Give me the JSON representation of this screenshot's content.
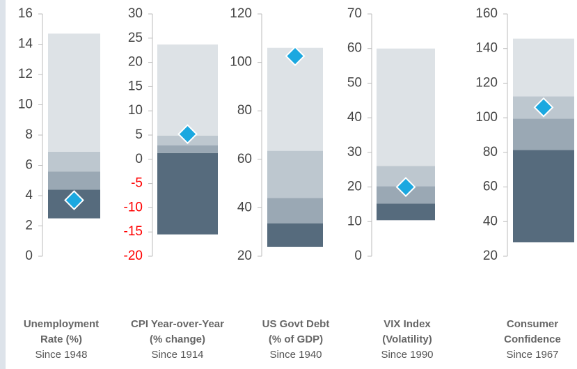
{
  "chart_data": [
    {
      "type": "range",
      "title": "Unemployment Rate (%)",
      "subtitle": "Since 1948",
      "ylim": [
        0,
        16
      ],
      "yticks": [
        0,
        2,
        4,
        6,
        8,
        10,
        12,
        14,
        16
      ],
      "values": {
        "min": 2.5,
        "q1": 4.4,
        "median": 5.6,
        "q3": 6.9,
        "max": 14.7,
        "current": 3.7
      }
    },
    {
      "type": "range",
      "title": "CPI Year-over-Year (% change)",
      "subtitle": "Since 1914",
      "ylim": [
        -20,
        30
      ],
      "yticks": [
        -20,
        -15,
        -10,
        -5,
        0,
        5,
        10,
        15,
        20,
        25,
        30
      ],
      "negative_color": "#ff0000",
      "values": {
        "min": -15.5,
        "q1": 1.3,
        "median": 2.9,
        "q3": 4.9,
        "max": 23.7,
        "current": 5.2
      }
    },
    {
      "type": "range",
      "title": "US Govt Debt (% of GDP)",
      "subtitle": "Since 1940",
      "ylim": [
        20,
        120
      ],
      "yticks": [
        20,
        40,
        60,
        80,
        100,
        120
      ],
      "values": {
        "min": 23.8,
        "q1": 33.6,
        "median": 44,
        "q3": 63.5,
        "max": 106,
        "current": 102.6
      }
    },
    {
      "type": "range",
      "title": "VIX Index (Volatility)",
      "subtitle": "Since 1990",
      "ylim": [
        0,
        70
      ],
      "yticks": [
        0,
        10,
        20,
        30,
        40,
        50,
        60,
        70
      ],
      "values": {
        "min": 10.4,
        "q1": 15.2,
        "median": 20.2,
        "q3": 26.1,
        "max": 60,
        "current": 20
      }
    },
    {
      "type": "range",
      "title": "Consumer Confidence",
      "subtitle": "Since 1967",
      "ylim": [
        20,
        160
      ],
      "yticks": [
        20,
        40,
        60,
        80,
        100,
        120,
        140,
        160
      ],
      "values": {
        "min": 28,
        "q1": 81.4,
        "median": 99.5,
        "q3": 112.4,
        "max": 145.7,
        "current": 106
      }
    }
  ]
}
